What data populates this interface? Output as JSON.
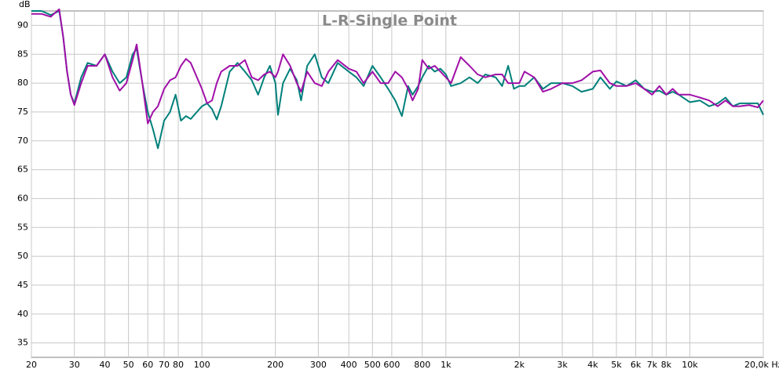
{
  "chart_data": {
    "type": "line",
    "title": "L-R-Single Point",
    "y_label": "dB",
    "xscale": "log",
    "grid": true,
    "x": [
      20,
      22,
      24,
      26,
      27,
      28,
      29,
      30,
      32,
      34,
      37,
      40,
      43,
      46,
      49,
      52,
      54,
      57,
      60,
      63,
      66,
      70,
      74,
      78,
      82,
      86,
      90,
      100,
      105,
      110,
      115,
      120,
      130,
      140,
      150,
      160,
      170,
      180,
      190,
      200,
      205,
      215,
      230,
      245,
      255,
      270,
      290,
      310,
      330,
      360,
      400,
      430,
      460,
      500,
      540,
      580,
      620,
      660,
      700,
      730,
      770,
      800,
      850,
      900,
      950,
      1000,
      1050,
      1150,
      1250,
      1350,
      1450,
      1600,
      1700,
      1800,
      1900,
      2000,
      2100,
      2300,
      2500,
      2700,
      3000,
      3300,
      3600,
      4000,
      4300,
      4700,
      5000,
      5500,
      6000,
      6500,
      7000,
      7500,
      8000,
      8500,
      9000,
      10000,
      11000,
      12000,
      13000,
      14000,
      15000,
      16000,
      17500,
      19000,
      20000
    ],
    "series": [
      {
        "color": "#00807a",
        "values": [
          92.5,
          92.5,
          91.8,
          92.5,
          88,
          82,
          78,
          76.5,
          81,
          83.5,
          83,
          85,
          82,
          80,
          81,
          85,
          86,
          80,
          75,
          72,
          68.7,
          73.5,
          75,
          78,
          73.5,
          74.3,
          73.8,
          76,
          76.5,
          75.5,
          73.7,
          76,
          82,
          83.5,
          82,
          80.5,
          78,
          81,
          83,
          80,
          74.5,
          80,
          82.5,
          80.5,
          77,
          83,
          85,
          81,
          80,
          83.5,
          82,
          81,
          79.5,
          83,
          81,
          79,
          77,
          74.3,
          79.5,
          78,
          79.5,
          81,
          83,
          82,
          82.5,
          81.5,
          79.5,
          80,
          81,
          80,
          81.5,
          81,
          79.5,
          83,
          79,
          79.5,
          79.5,
          81,
          79,
          80,
          80,
          79.5,
          78.5,
          79,
          81,
          79,
          80.3,
          79.5,
          80.5,
          79,
          78.5,
          78.7,
          78,
          78.5,
          78,
          76.7,
          77,
          76,
          76.5,
          77.5,
          76,
          76.5,
          76.5,
          76.5,
          74.5
        ]
      },
      {
        "color": "#a010a8",
        "values": [
          92,
          92,
          91.5,
          92.8,
          88,
          82,
          78,
          76.2,
          80,
          83,
          83,
          85,
          81,
          78.7,
          80,
          84,
          86.7,
          80,
          73,
          75,
          76,
          79,
          80.5,
          81,
          83,
          84.2,
          83.5,
          79,
          76.5,
          77,
          80,
          82,
          83,
          83,
          84,
          81,
          80.5,
          81.5,
          82,
          81,
          82,
          85,
          83,
          80,
          78.5,
          82,
          80,
          79.5,
          82,
          84,
          82.5,
          82,
          80,
          82,
          80,
          80,
          82,
          81,
          79,
          77,
          79,
          84,
          82.5,
          83,
          82,
          81,
          80,
          84.5,
          83,
          81.5,
          81,
          81.5,
          81.5,
          80,
          80,
          80,
          82,
          81,
          78.5,
          79,
          80,
          80,
          80.5,
          82,
          82.2,
          80,
          79.5,
          79.5,
          80,
          79,
          78,
          79.5,
          78,
          79,
          78,
          78,
          77.5,
          77,
          76,
          77,
          76,
          76,
          76.2,
          75.8,
          77
        ]
      }
    ],
    "xlim": [
      20,
      20000
    ],
    "ylim": [
      32.5,
      92.5
    ],
    "xticks": [
      20,
      30,
      40,
      50,
      60,
      70,
      80,
      100,
      200,
      300,
      400,
      500,
      600,
      800,
      {
        "value": 1000,
        "label": "1k"
      },
      {
        "value": 2000,
        "label": "2k"
      },
      {
        "value": 3000,
        "label": "3k"
      },
      {
        "value": 4000,
        "label": "4k"
      },
      {
        "value": 5000,
        "label": "5k"
      },
      {
        "value": 6000,
        "label": "6k"
      },
      {
        "value": 7000,
        "label": "7k"
      },
      {
        "value": 8000,
        "label": "8k"
      },
      {
        "value": 10000,
        "label": "10k"
      },
      {
        "value": 20000,
        "label": "20,0k Hz"
      }
    ],
    "yticks": [
      35,
      40,
      45,
      50,
      55,
      60,
      65,
      70,
      75,
      80,
      85,
      90
    ]
  }
}
